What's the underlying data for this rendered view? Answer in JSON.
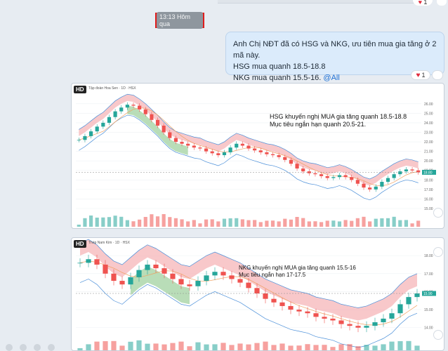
{
  "time_separator": "13:13 Hôm qua",
  "message": {
    "line1": "Anh Chị NĐT đã có HSG và NKG, ưu tiên mua gia tăng ở 2 mã này.",
    "line2": "HSG mua quanh 18.5-18.8",
    "line3": "NKG mua quanh 15.5-16.",
    "mention": "@All",
    "reaction_count": "1"
  },
  "top_reaction_count": "1",
  "chart1": {
    "badge": "HD",
    "legend": "Tập đoàn Hoa Sen · 1D · HSX",
    "annotation_line1": "HSG khuyến nghị MUA gia tăng quanh 18.5-18.8",
    "annotation_line2": "Mục tiêu ngắn hạn quanh 20.5-21.",
    "price_ticks": [
      "26.00",
      "25.00",
      "24.00",
      "23.00",
      "22.00",
      "21.00",
      "20.00",
      "19.00",
      "18.00",
      "17.00",
      "16.00",
      "15.00"
    ],
    "last_price": "18.80"
  },
  "chart2": {
    "badge": "HD",
    "legend": "Thép Nam Kim · 1D · HSX",
    "annotation_line1": "NKG khuyến nghị MUA gia tăng quanh 15.5-16",
    "annotation_line2": "Mục tiêu ngắn hạn 17-17.5",
    "price_ticks": [
      "18.00",
      "17.00",
      "16.00",
      "15.00",
      "14.00"
    ],
    "last_price": "15.90"
  },
  "colors": {
    "up": "#26a69a",
    "down": "#ef5350",
    "cloud_red": "#f6b5b8",
    "cloud_green": "#a8d5a6",
    "bollinger": "#4a8fd9",
    "ma": "#f0a060"
  },
  "chart_data": [
    {
      "type": "line",
      "title": "",
      "series": [
        {
          "name": "Close",
          "values": [
            22.2,
            22.6,
            23.1,
            23.6,
            24.0,
            24.6,
            25.2,
            25.6,
            25.9,
            25.8,
            25.4,
            24.9,
            24.3,
            23.7,
            23.0,
            22.4,
            22.0,
            21.8,
            21.6,
            21.4,
            21.3,
            21.0,
            20.8,
            20.6,
            20.9,
            21.4,
            21.8,
            21.6,
            21.3,
            21.1,
            20.9,
            20.7,
            20.6,
            20.4,
            20.1,
            19.7,
            19.2,
            18.9,
            18.7,
            18.6,
            18.4,
            18.2,
            18.3,
            18.5,
            18.3,
            18.0,
            17.6,
            17.2,
            17.0,
            17.3,
            17.8,
            18.2,
            18.6,
            18.9,
            19.1,
            19.0,
            18.8
          ]
        }
      ],
      "ylim": [
        15,
        26.5
      ]
    },
    {
      "type": "line",
      "title": "",
      "series": [
        {
          "name": "Close",
          "values": [
            17.6,
            17.8,
            17.5,
            17.0,
            16.6,
            16.4,
            16.8,
            17.2,
            17.5,
            17.3,
            17.0,
            16.7,
            16.4,
            16.3,
            16.6,
            16.9,
            17.1,
            16.9,
            16.7,
            16.5,
            16.2,
            15.9,
            15.6,
            15.4,
            15.2,
            15.0,
            14.9,
            14.8,
            14.6,
            14.5,
            14.4,
            14.2,
            14.1,
            14.0,
            14.1,
            14.3,
            14.5,
            14.8,
            15.3,
            15.7,
            15.9
          ]
        }
      ],
      "ylim": [
        13.6,
        18.2
      ]
    }
  ]
}
